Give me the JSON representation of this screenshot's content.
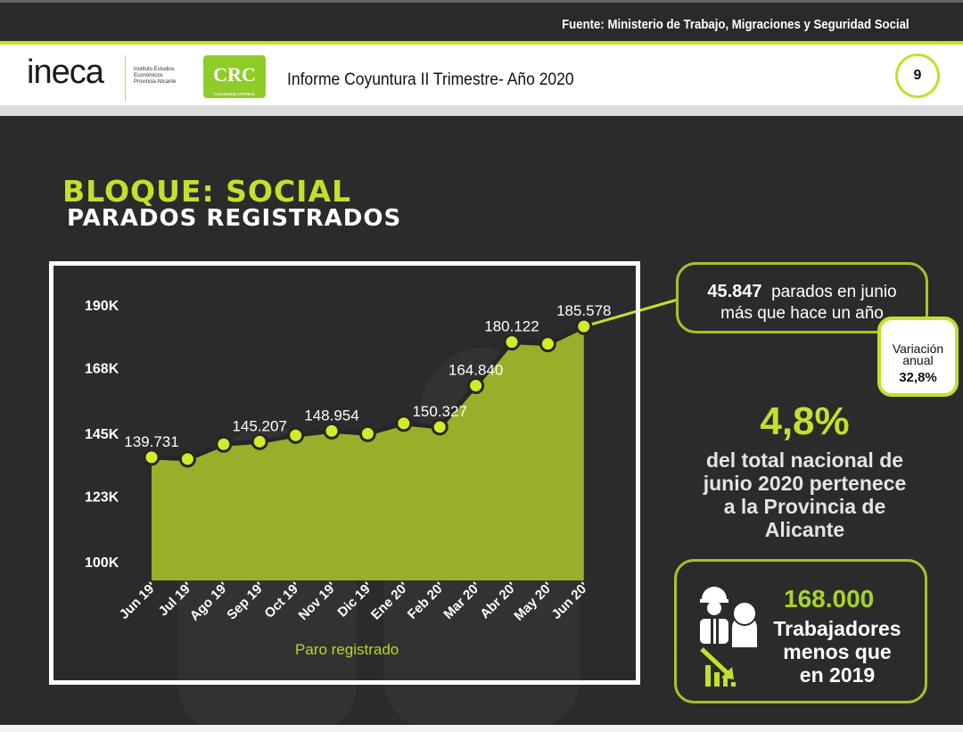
{
  "header": {
    "source": "Fuente: Ministerio de Trabajo, Migraciones y Seguridad Social",
    "logo_ineca": "ineca",
    "logo_ineca_sub": [
      "Instituto Estudios",
      "Económicos",
      "Provincia Alicante"
    ],
    "logo_crc": "CRC",
    "logo_crc_sub": "CAJA RURAL CENTRAL",
    "title": "Informe Coyuntura II Trimestre- Año 2020",
    "page_number": "9"
  },
  "section": {
    "bloque": "BLOQUE: SOCIAL",
    "title": "PARADOS REGISTRADOS"
  },
  "colors": {
    "accent": "#c6de2c",
    "area": "#98af2a",
    "background": "#2b2b2b"
  },
  "chart_data": {
    "type": "area",
    "categories": [
      "Jun 19'",
      "Jul 19'",
      "Ago 19'",
      "Sep 19'",
      "Oct 19'",
      "Nov 19'",
      "Dic 19'",
      "Ene 20'",
      "Feb 20'",
      "Mar 20'",
      "Abr 20'",
      "May 20'",
      "Jun 20'"
    ],
    "values": [
      139731,
      139100,
      144300,
      145207,
      147400,
      148954,
      148000,
      151600,
      150327,
      164840,
      180122,
      179500,
      185578
    ],
    "data_labels": [
      "139.731",
      "",
      "",
      "145.207",
      "",
      "148.954",
      "",
      "",
      "150.327",
      "164.840",
      "180.122",
      "",
      "185.578"
    ],
    "yticks": [
      {
        "value": 190000,
        "label": "190K"
      },
      {
        "value": 168000,
        "label": "168K"
      },
      {
        "value": 145000,
        "label": "145K"
      },
      {
        "value": 123000,
        "label": "123K"
      },
      {
        "value": 100000,
        "label": "100K"
      }
    ],
    "ylim": [
      100000,
      190000
    ],
    "xlabel": "Paro registrado",
    "grid": false
  },
  "callout": {
    "number": "45.847",
    "text1": "parados en junio",
    "text2": "más que hace un año"
  },
  "variation": {
    "label1": "Variación",
    "label2": "anual",
    "value": "32,8%"
  },
  "share": {
    "value": "4,8%",
    "text": [
      "del total nacional de",
      "junio 2020 pertenece",
      "a la Provincia de",
      "Alicante"
    ]
  },
  "workers": {
    "number": "168.000",
    "text": [
      "Trabajadores",
      "menos que",
      "en 2019"
    ]
  }
}
